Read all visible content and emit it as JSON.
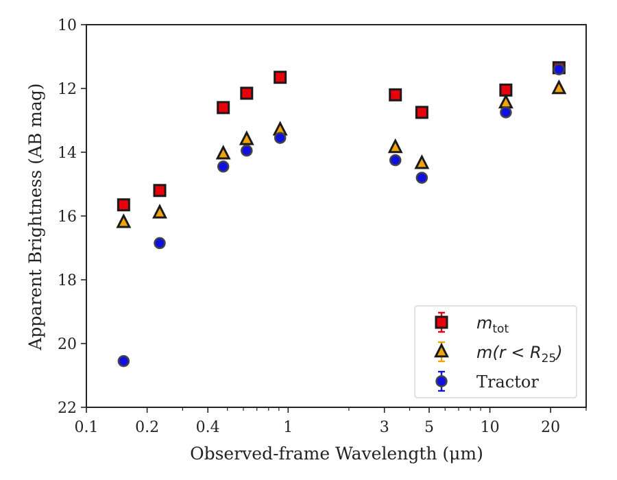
{
  "chart_data": {
    "type": "scatter",
    "xlabel": "Observed-frame Wavelength (μm)",
    "ylabel": "Apparent Brightness (AB mag)",
    "xscale": "log",
    "xlim": [
      0.1,
      30
    ],
    "ylim": [
      22,
      10
    ],
    "y_inverted": true,
    "xticks": [
      0.1,
      0.2,
      0.4,
      1,
      3,
      5,
      10,
      20
    ],
    "xtick_labels": [
      "0.1",
      "0.2",
      "0.4",
      "1",
      "3",
      "5",
      "10",
      "20"
    ],
    "yticks": [
      10,
      12,
      14,
      16,
      18,
      20,
      22
    ],
    "ytick_labels": [
      "10",
      "12",
      "14",
      "16",
      "18",
      "20",
      "22"
    ],
    "grid": false,
    "legend_position": "lower-right",
    "series": [
      {
        "name": "m_tot",
        "label_main": "m",
        "label_sub": "tot",
        "marker": "square",
        "color": "#e8000b",
        "edge": "#1a1a1a",
        "x": [
          0.153,
          0.231,
          0.477,
          0.623,
          0.913,
          3.4,
          4.6,
          12.0,
          22.0
        ],
        "y": [
          15.65,
          15.2,
          12.6,
          12.15,
          11.65,
          12.2,
          12.75,
          12.05,
          11.35
        ]
      },
      {
        "name": "m(r < R25)",
        "label_main": "m(r < R",
        "label_sub": "25",
        "label_end": ")",
        "marker": "triangle",
        "color": "#f0a30a",
        "edge": "#1a1a1a",
        "x": [
          0.153,
          0.231,
          0.477,
          0.623,
          0.913,
          3.4,
          4.6,
          12.0,
          22.0
        ],
        "y": [
          16.2,
          15.9,
          14.05,
          13.6,
          13.3,
          13.85,
          14.35,
          12.45,
          12.0
        ]
      },
      {
        "name": "Tractor",
        "label_main": "Tractor",
        "marker": "circle",
        "color": "#1010e0",
        "edge": "#444444",
        "x": [
          0.153,
          0.231,
          0.477,
          0.623,
          0.913,
          3.4,
          4.6,
          12.0,
          22.0
        ],
        "y": [
          20.55,
          16.85,
          14.45,
          13.95,
          13.55,
          14.25,
          14.8,
          12.75,
          11.4
        ]
      }
    ]
  }
}
